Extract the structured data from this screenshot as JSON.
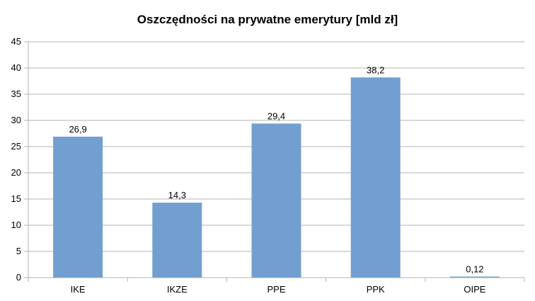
{
  "chart_data": {
    "type": "bar",
    "title": "Oszczędności na prywatne emerytury [mld zł]",
    "xlabel": "",
    "ylabel": "",
    "categories": [
      "IKE",
      "IKZE",
      "PPE",
      "PPK",
      "OIPE"
    ],
    "values": [
      26.9,
      14.3,
      29.4,
      38.2,
      0.12
    ],
    "data_labels": [
      "26,9",
      "14,3",
      "29,4",
      "38,2",
      "0,12"
    ],
    "ylim": [
      0,
      45
    ],
    "yticks": [
      0,
      5,
      10,
      15,
      20,
      25,
      30,
      35,
      40,
      45
    ],
    "grid": true,
    "legend": "none",
    "bar_color": "#729fcf",
    "grid_color": "#b3b3b3"
  }
}
